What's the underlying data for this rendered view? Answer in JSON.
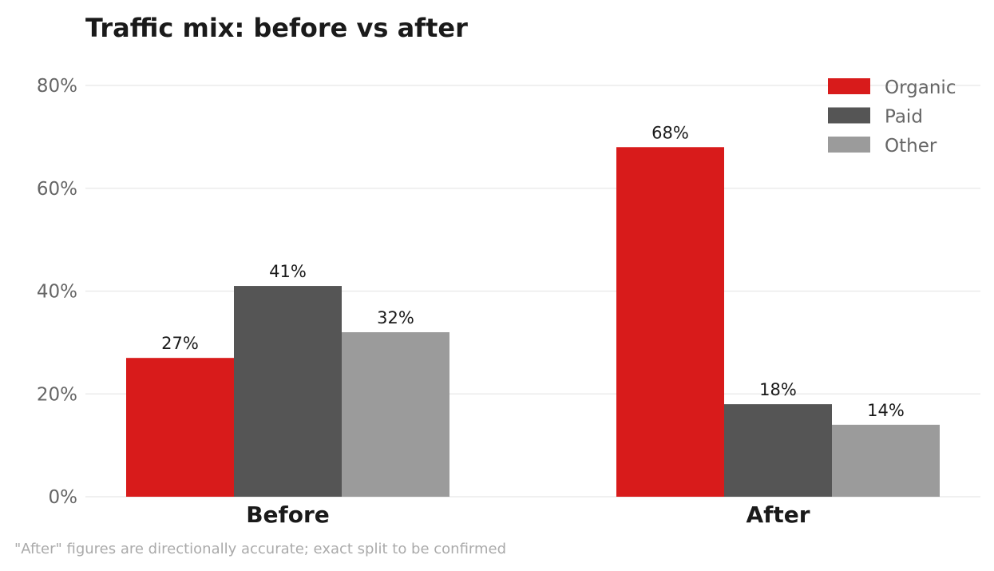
{
  "chart_data": {
    "type": "bar",
    "title": "Traffic mix: before vs after",
    "categories": [
      "Before",
      "After"
    ],
    "series": [
      {
        "name": "Organic",
        "values": [
          27,
          68
        ],
        "color": "#d81b1b"
      },
      {
        "name": "Paid",
        "values": [
          41,
          18
        ],
        "color": "#555555"
      },
      {
        "name": "Other",
        "values": [
          32,
          14
        ],
        "color": "#9b9b9b"
      }
    ],
    "data_labels": [
      [
        "27%",
        "68%"
      ],
      [
        "41%",
        "18%"
      ],
      [
        "32%",
        "14%"
      ]
    ],
    "yticks": [
      0,
      20,
      40,
      60,
      80
    ],
    "ytick_labels": [
      "0%",
      "20%",
      "40%",
      "60%",
      "80%"
    ],
    "ylim": [
      0,
      80
    ],
    "grid": true,
    "legend_position": "top-right",
    "xlabel": "",
    "ylabel": ""
  },
  "footnote": "\"After\" figures are directionally accurate; exact split to be confirmed"
}
